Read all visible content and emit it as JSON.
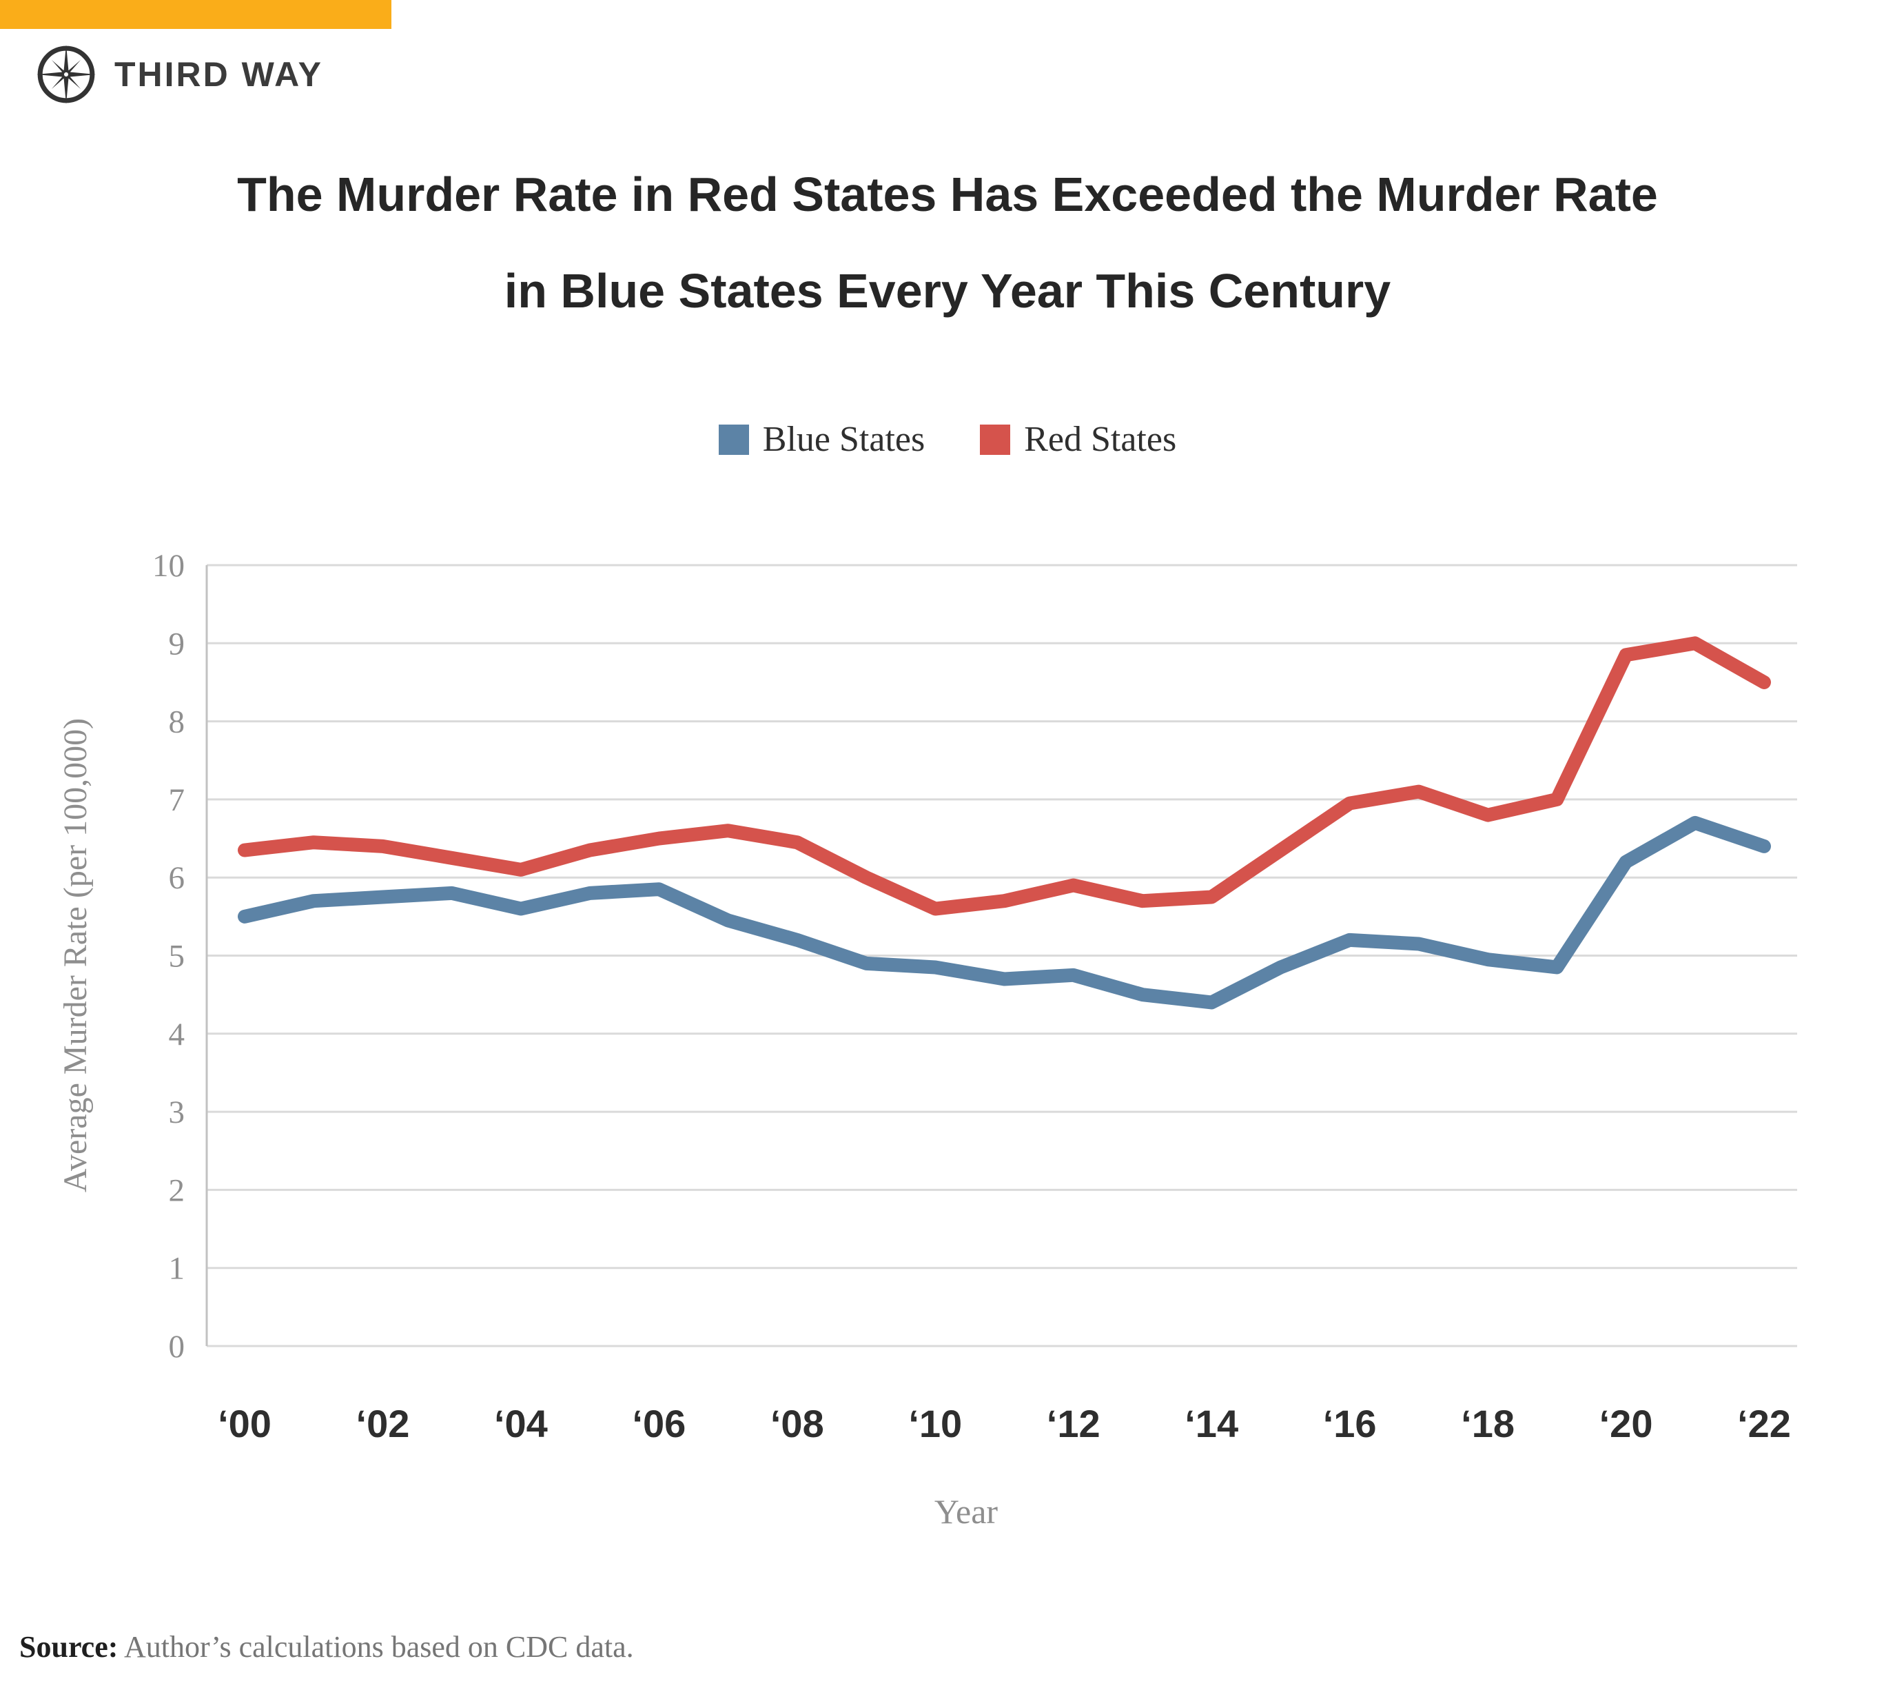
{
  "brand": {
    "name": "THIRD WAY"
  },
  "icons": {
    "brand": "compass-rose"
  },
  "colors": {
    "brand_orange": "#FAAD19",
    "blue": "#5C83A6",
    "red": "#D5534C",
    "grid": "#DADADA",
    "axis": "#C2C2C2",
    "tick_text": "#8F8F8F",
    "axis_title_text": "#8E8E8E",
    "x_tick_text": "#2E2E2E",
    "title_text": "#262626"
  },
  "title": {
    "line1": "The Murder Rate in Red States Has Exceeded the Murder Rate",
    "line2": "in Blue States Every Year This Century"
  },
  "source": {
    "label": "Source:",
    "text": " Author’s calculations based on CDC data."
  },
  "chart_data": {
    "type": "line",
    "title": "The Murder Rate in Red States Has Exceeded the Murder Rate in Blue States Every Year This Century",
    "xlabel": "Year",
    "ylabel": "Average Murder Rate (per 100,000)",
    "ylim": [
      0,
      10
    ],
    "grid": true,
    "legend_position": "top",
    "y_ticks": [
      0,
      1,
      2,
      3,
      4,
      5,
      6,
      7,
      8,
      9,
      10
    ],
    "x": [
      2000,
      2001,
      2002,
      2003,
      2004,
      2005,
      2006,
      2007,
      2008,
      2009,
      2010,
      2011,
      2012,
      2013,
      2014,
      2015,
      2016,
      2017,
      2018,
      2019,
      2020,
      2021,
      2022
    ],
    "x_ticks": [
      {
        "year": 2000,
        "label": "‘00"
      },
      {
        "year": 2002,
        "label": "‘02"
      },
      {
        "year": 2004,
        "label": "‘04"
      },
      {
        "year": 2006,
        "label": "‘06"
      },
      {
        "year": 2008,
        "label": "‘08"
      },
      {
        "year": 2010,
        "label": "‘10"
      },
      {
        "year": 2012,
        "label": "‘12"
      },
      {
        "year": 2014,
        "label": "‘14"
      },
      {
        "year": 2016,
        "label": "‘16"
      },
      {
        "year": 2018,
        "label": "‘18"
      },
      {
        "year": 2020,
        "label": "‘20"
      },
      {
        "year": 2022,
        "label": "‘22"
      }
    ],
    "series": [
      {
        "name": "Blue States",
        "color": "#5C83A6",
        "values": [
          5.5,
          5.7,
          5.75,
          5.8,
          5.6,
          5.8,
          5.85,
          5.45,
          5.2,
          4.9,
          4.85,
          4.7,
          4.75,
          4.5,
          4.4,
          4.85,
          5.2,
          5.15,
          4.95,
          4.85,
          6.2,
          6.7,
          6.4
        ]
      },
      {
        "name": "Red States",
        "color": "#D5534C",
        "values": [
          6.35,
          6.45,
          6.4,
          6.25,
          6.1,
          6.35,
          6.5,
          6.6,
          6.45,
          6.0,
          5.6,
          5.7,
          5.9,
          5.7,
          5.75,
          6.35,
          6.95,
          7.1,
          6.8,
          7.0,
          8.85,
          9.0,
          8.5
        ]
      }
    ]
  }
}
